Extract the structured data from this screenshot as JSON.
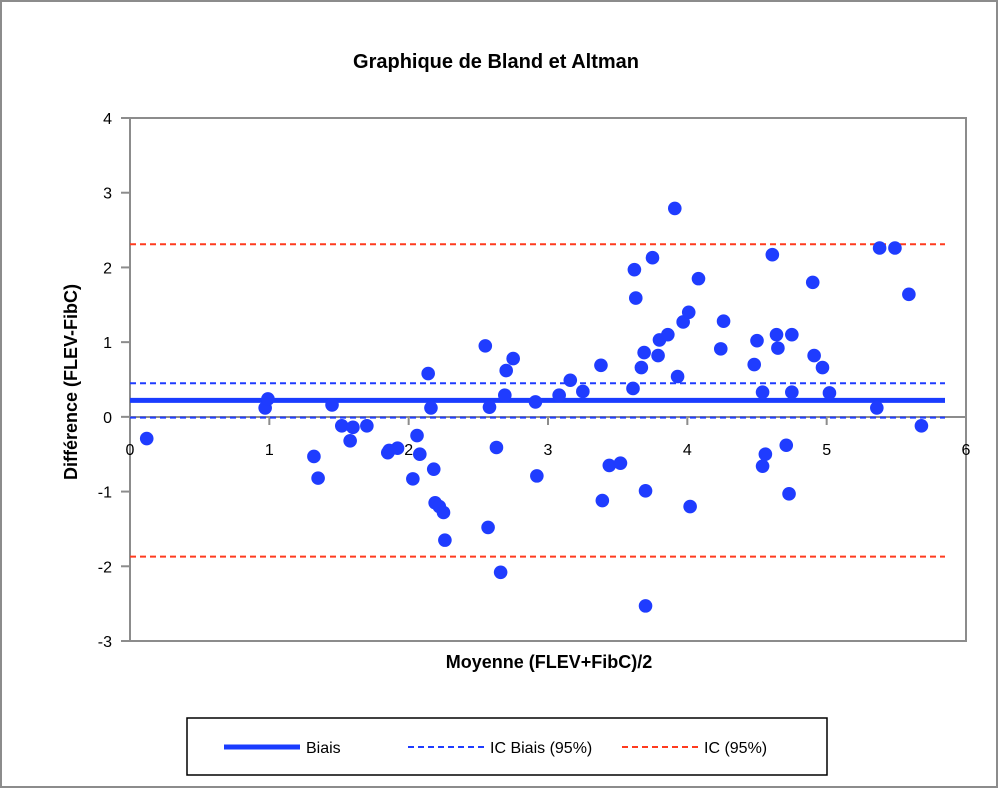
{
  "colors": {
    "point": "#1f3cff",
    "bias": "#1a3cff",
    "ic_bias": "#1f3cff",
    "ic": "#ff3b1f",
    "frame": "#8c8c8c",
    "text": "#000000"
  },
  "chart_data": {
    "type": "scatter",
    "title": "Graphique de Bland et Altman",
    "xlabel": "Moyenne (FLEV+FibC)/2",
    "ylabel": "Différence (FLEV-FibC)",
    "xlim": [
      0,
      6
    ],
    "ylim": [
      -3,
      4
    ],
    "xticks": [
      "0",
      "1",
      "2",
      "3",
      "4",
      "5",
      "6"
    ],
    "yticks": [
      "-3",
      "-2",
      "-1",
      "0",
      "1",
      "2",
      "3",
      "4"
    ],
    "lines": [
      {
        "name": "Biais",
        "y": 0.22,
        "style": "solid",
        "color": "#1a3cff"
      },
      {
        "name": "IC Biais (95%)",
        "y": 0.45,
        "style": "dashed",
        "color": "#1f3cff"
      },
      {
        "name": "IC Biais (95%)",
        "y": -0.01,
        "style": "dashed",
        "color": "#1f3cff"
      },
      {
        "name": "IC (95%)",
        "y": 2.31,
        "style": "dashed",
        "color": "#ff3b1f"
      },
      {
        "name": "IC (95%)",
        "y": -1.87,
        "style": "dashed",
        "color": "#ff3b1f"
      }
    ],
    "legend": [
      {
        "name": "Biais",
        "style": "solid",
        "color": "#1a3cff"
      },
      {
        "name": "IC Biais (95%)",
        "style": "dashed",
        "color": "#1f3cff"
      },
      {
        "name": "IC (95%)",
        "style": "dashed",
        "color": "#ff3b1f"
      }
    ],
    "points": [
      [
        0.12,
        -0.29
      ],
      [
        0.97,
        0.12
      ],
      [
        0.99,
        0.24
      ],
      [
        1.32,
        -0.53
      ],
      [
        1.35,
        -0.82
      ],
      [
        1.45,
        0.16
      ],
      [
        1.52,
        -0.12
      ],
      [
        1.58,
        -0.32
      ],
      [
        1.6,
        -0.14
      ],
      [
        1.7,
        -0.12
      ],
      [
        1.85,
        -0.48
      ],
      [
        1.86,
        -0.45
      ],
      [
        1.92,
        -0.42
      ],
      [
        2.03,
        -0.83
      ],
      [
        2.06,
        -0.25
      ],
      [
        2.08,
        -0.5
      ],
      [
        2.14,
        0.58
      ],
      [
        2.16,
        0.12
      ],
      [
        2.18,
        -0.7
      ],
      [
        2.19,
        -1.15
      ],
      [
        2.22,
        -1.2
      ],
      [
        2.25,
        -1.28
      ],
      [
        2.26,
        -1.65
      ],
      [
        2.55,
        0.95
      ],
      [
        2.57,
        -1.48
      ],
      [
        2.58,
        0.13
      ],
      [
        2.63,
        -0.41
      ],
      [
        2.66,
        -2.08
      ],
      [
        2.69,
        0.29
      ],
      [
        2.7,
        0.62
      ],
      [
        2.75,
        0.78
      ],
      [
        2.91,
        0.2
      ],
      [
        2.92,
        -0.79
      ],
      [
        3.08,
        0.29
      ],
      [
        3.16,
        0.49
      ],
      [
        3.25,
        0.34
      ],
      [
        3.38,
        0.69
      ],
      [
        3.39,
        -1.12
      ],
      [
        3.44,
        -0.65
      ],
      [
        3.52,
        -0.62
      ],
      [
        3.61,
        0.38
      ],
      [
        3.62,
        1.97
      ],
      [
        3.63,
        1.59
      ],
      [
        3.67,
        0.66
      ],
      [
        3.69,
        0.86
      ],
      [
        3.7,
        -0.99
      ],
      [
        3.7,
        -2.53
      ],
      [
        3.75,
        2.13
      ],
      [
        3.79,
        0.82
      ],
      [
        3.8,
        1.03
      ],
      [
        3.86,
        1.1
      ],
      [
        3.91,
        2.79
      ],
      [
        3.93,
        0.54
      ],
      [
        3.97,
        1.27
      ],
      [
        4.01,
        1.4
      ],
      [
        4.02,
        -1.2
      ],
      [
        4.08,
        1.85
      ],
      [
        4.24,
        0.91
      ],
      [
        4.26,
        1.28
      ],
      [
        4.48,
        0.7
      ],
      [
        4.5,
        1.02
      ],
      [
        4.54,
        0.33
      ],
      [
        4.54,
        -0.66
      ],
      [
        4.56,
        -0.5
      ],
      [
        4.61,
        2.17
      ],
      [
        4.64,
        1.1
      ],
      [
        4.65,
        0.92
      ],
      [
        4.71,
        -0.38
      ],
      [
        4.73,
        -1.03
      ],
      [
        4.75,
        1.1
      ],
      [
        4.75,
        0.33
      ],
      [
        4.9,
        1.8
      ],
      [
        4.91,
        0.82
      ],
      [
        4.97,
        0.66
      ],
      [
        5.02,
        0.32
      ],
      [
        5.36,
        0.12
      ],
      [
        5.38,
        2.26
      ],
      [
        5.49,
        2.26
      ],
      [
        5.59,
        1.64
      ],
      [
        5.68,
        -0.12
      ]
    ]
  }
}
